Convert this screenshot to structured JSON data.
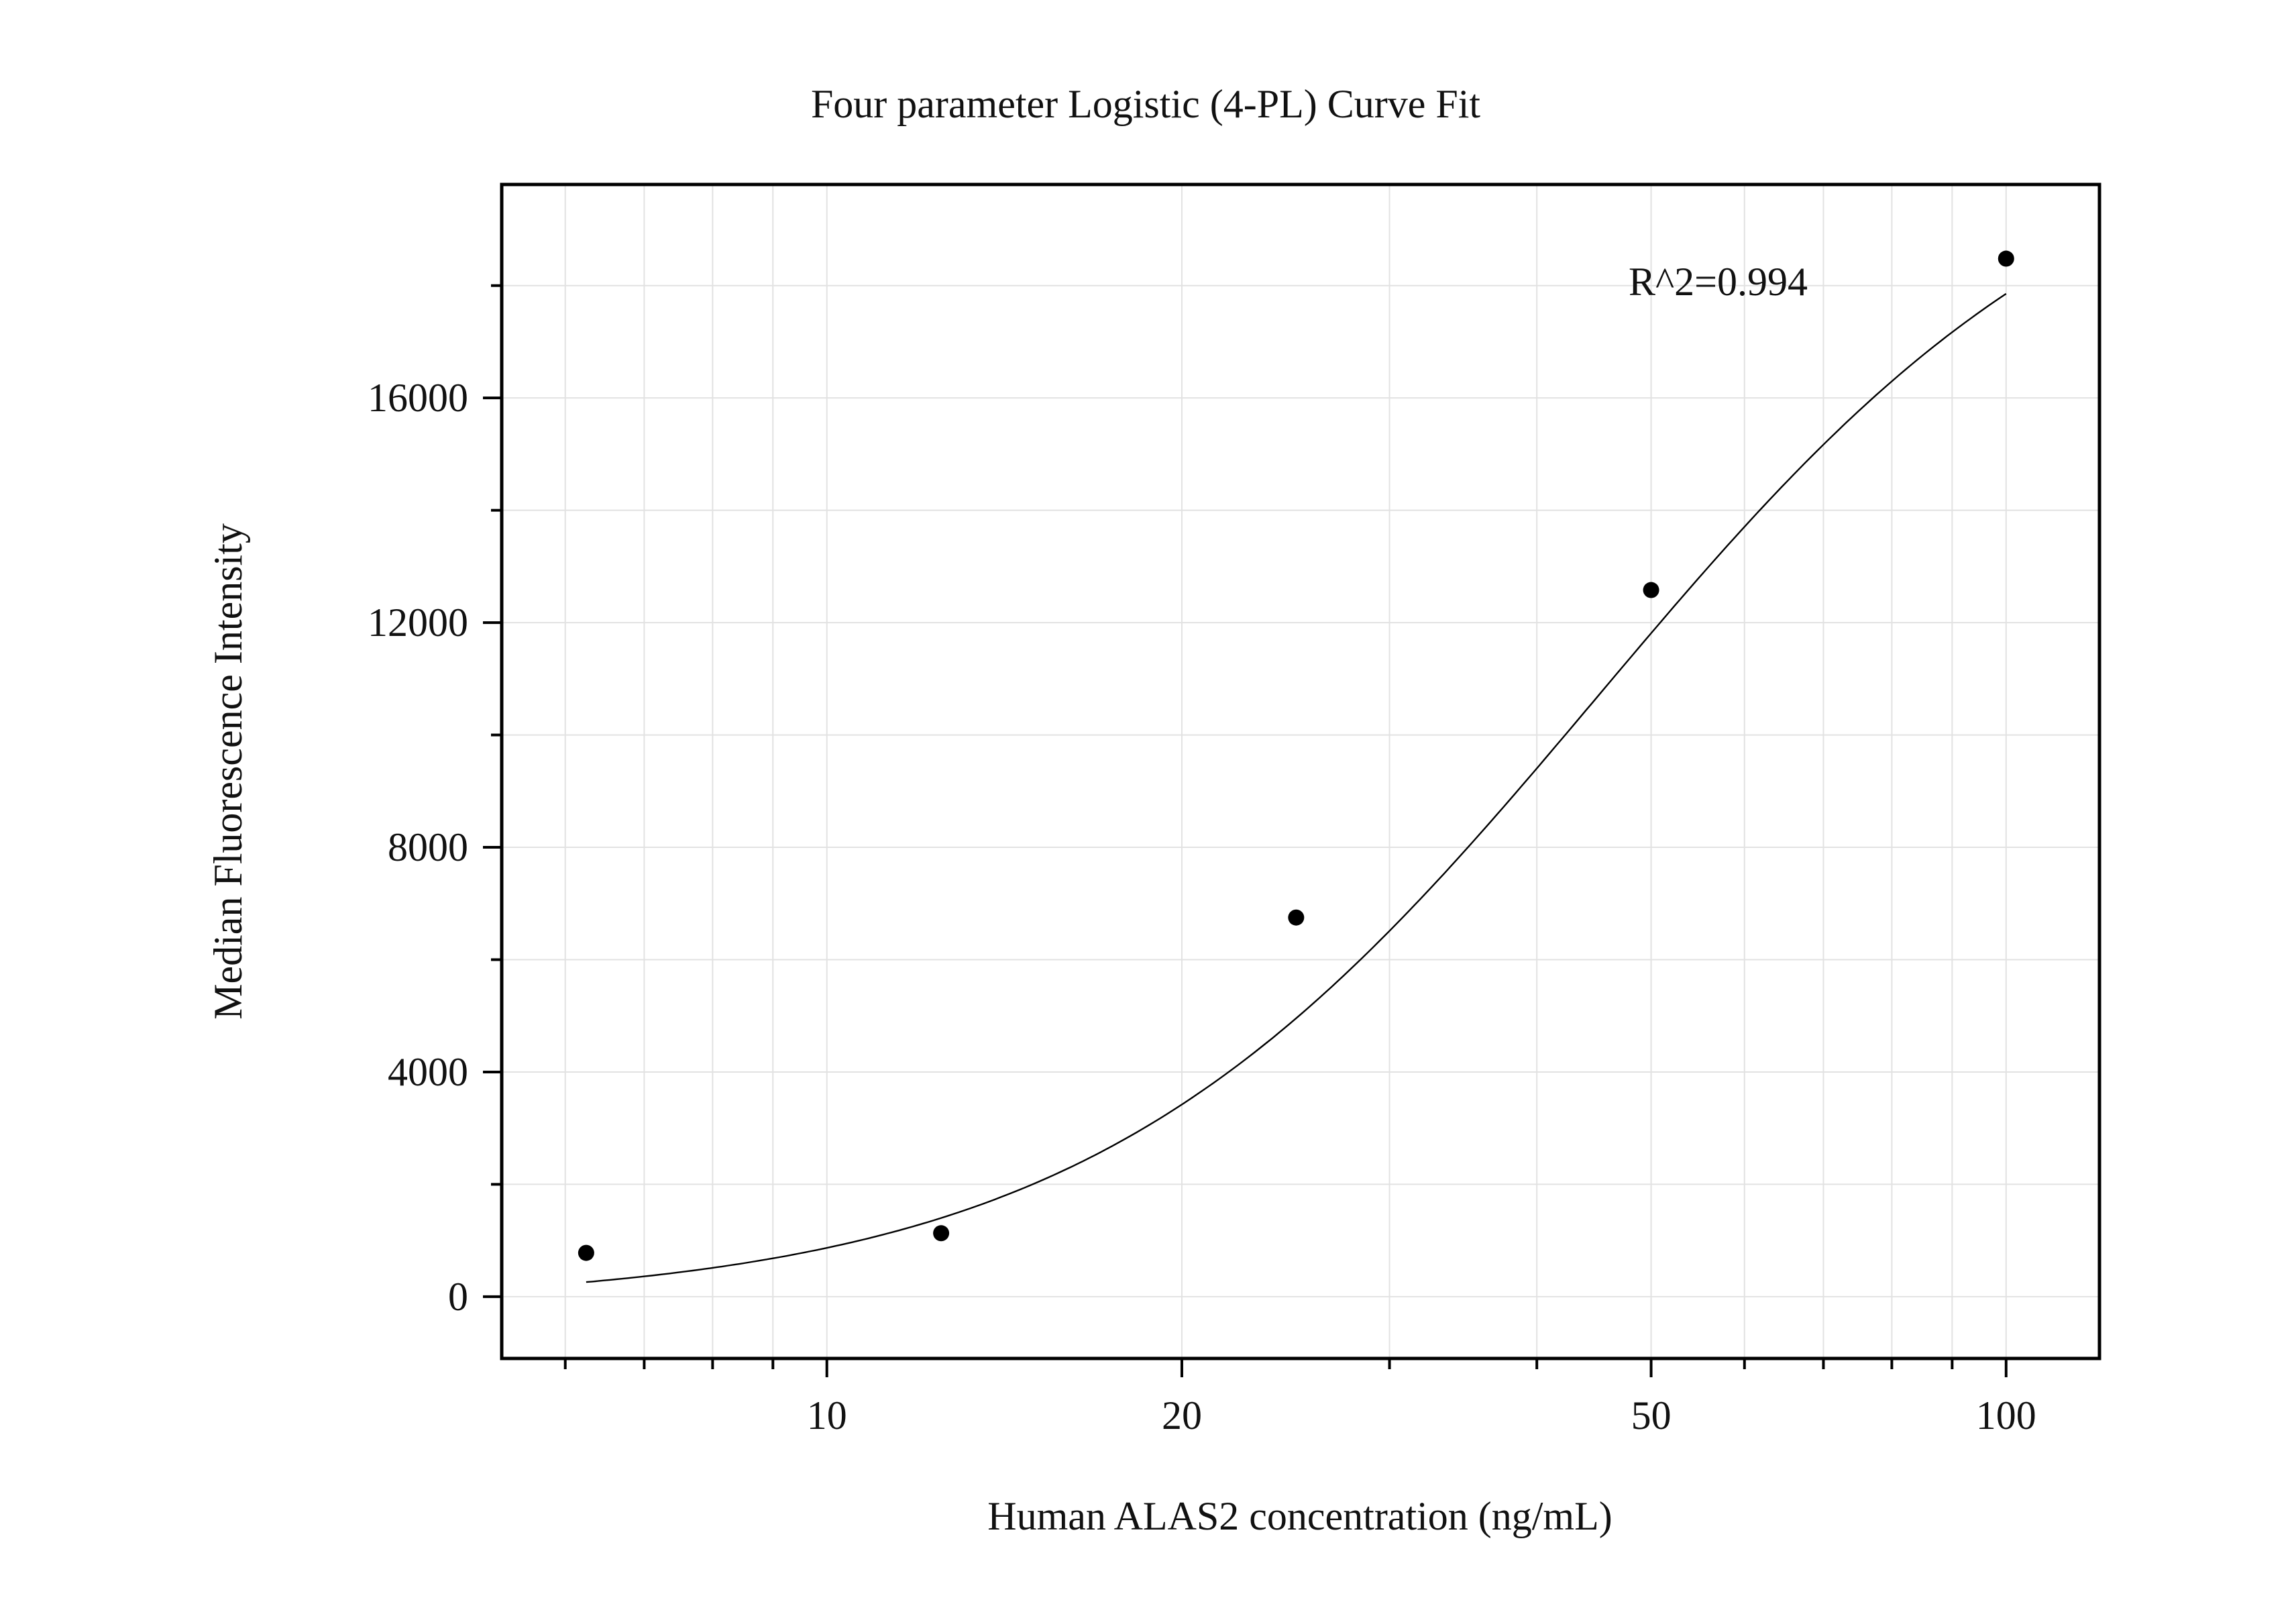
{
  "chart_data": {
    "type": "scatter",
    "title": "Four parameter Logistic (4-PL) Curve Fit",
    "xlabel": "Human ALAS2 concentration (ng/mL)",
    "ylabel": "Median Fluorescence Intensity",
    "x_scale": "log",
    "xlim": [
      5.3,
      120
    ],
    "ylim": [
      -1100,
      19800
    ],
    "x_ticks": [
      10,
      20,
      50,
      100
    ],
    "x_tick_labels": [
      "10",
      "20",
      "50",
      "100"
    ],
    "x_minor_ticks": [
      6,
      7,
      8,
      9,
      30,
      40,
      60,
      70,
      80,
      90
    ],
    "y_ticks": [
      0,
      4000,
      8000,
      12000,
      16000
    ],
    "y_tick_labels": [
      "0",
      "4000",
      "8000",
      "12000",
      "16000"
    ],
    "y_minor_ticks": [
      2000,
      6000,
      10000,
      14000,
      18000
    ],
    "grid": true,
    "points": {
      "x": [
        6.25,
        12.5,
        25,
        50,
        100
      ],
      "y": [
        780,
        1130,
        6750,
        12580,
        18480
      ]
    },
    "fit": {
      "model": "4PL",
      "bottom": -150,
      "top": 21500,
      "ec50": 45,
      "hill": 2.0,
      "x_range": [
        6.25,
        100
      ]
    },
    "annotation": "R^2=0.994",
    "annotation_position": "top-right",
    "colors": {
      "points": "#000000",
      "curve": "#000000",
      "grid": "#e2e2e2",
      "axes": "#000000"
    }
  }
}
